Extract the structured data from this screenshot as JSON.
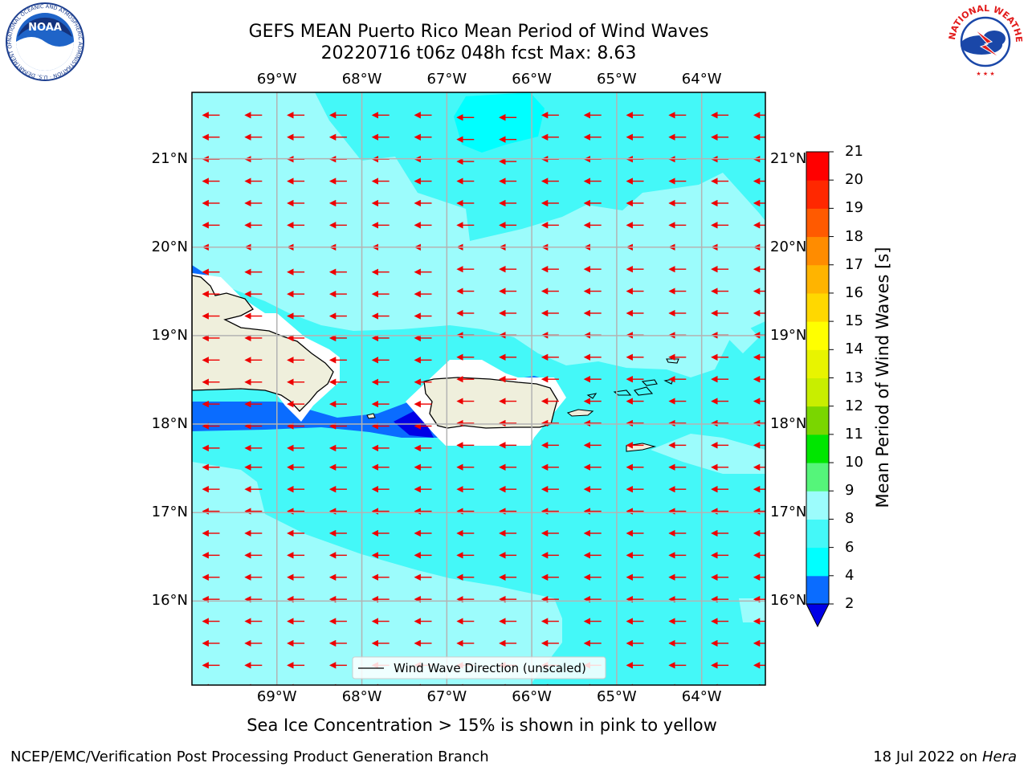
{
  "title": {
    "line1": "GEFS MEAN Puerto Rico Mean Period of Wind Waves",
    "line2": "20220716 t06z 048h fcst   Max: 8.63"
  },
  "axes": {
    "lon_labels": [
      "69°W",
      "68°W",
      "67°W",
      "66°W",
      "65°W",
      "64°W"
    ],
    "lat_labels": [
      "21°N",
      "20°N",
      "19°N",
      "18°N",
      "17°N",
      "16°N"
    ],
    "lon_values": [
      -69,
      -68,
      -67,
      -66,
      -65,
      -64
    ],
    "lat_values": [
      21,
      20,
      19,
      18,
      17,
      16
    ],
    "lon_range": [
      -70.0,
      -63.25
    ],
    "lat_range": [
      15.05,
      21.75
    ]
  },
  "colorbar": {
    "label": "Mean Period of Wind Waves [s]",
    "tick_labels": [
      "2",
      "4",
      "6",
      "8",
      "9",
      "10",
      "11",
      "12",
      "13",
      "14",
      "15",
      "16",
      "17",
      "18",
      "19",
      "20",
      "21"
    ],
    "levels": [
      2,
      4,
      6,
      8,
      9,
      10,
      11,
      12,
      13,
      14,
      15,
      16,
      17,
      18,
      19,
      20,
      21
    ],
    "colors": [
      "#0000e6",
      "#0a6cff",
      "#00ffff",
      "#44f8f8",
      "#9cfcfc",
      "#55f57a",
      "#00e600",
      "#7ad600",
      "#c8ee00",
      "#e8f400",
      "#ffff00",
      "#ffd800",
      "#ffb400",
      "#ff8c00",
      "#ff5a00",
      "#ff2800",
      "#ff0000"
    ],
    "underflow_color": "#0000e6"
  },
  "legend": {
    "label": "Wind Wave Direction (unscaled)"
  },
  "map_colors": {
    "land": "#efefdc",
    "arrow": "#ee0000",
    "grid": "#b3b3b3"
  },
  "footer": {
    "note": "Sea Ice Concentration > 15% is shown in pink to yellow",
    "left": "NCEP/EMC/Verification Post Processing Product Generation Branch",
    "date": "18 Jul 2022 on ",
    "machine": "Hera"
  },
  "logos": {
    "noaa": {
      "text": "NOAA",
      "ring_text": "NATIONAL OCEANIC AND ATMOSPHERIC ADMINISTRATION · U.S. DEPARTMENT OF COMMERCE"
    },
    "nws": {
      "ring_text": "NATIONAL WEATHER SERVICE"
    }
  }
}
